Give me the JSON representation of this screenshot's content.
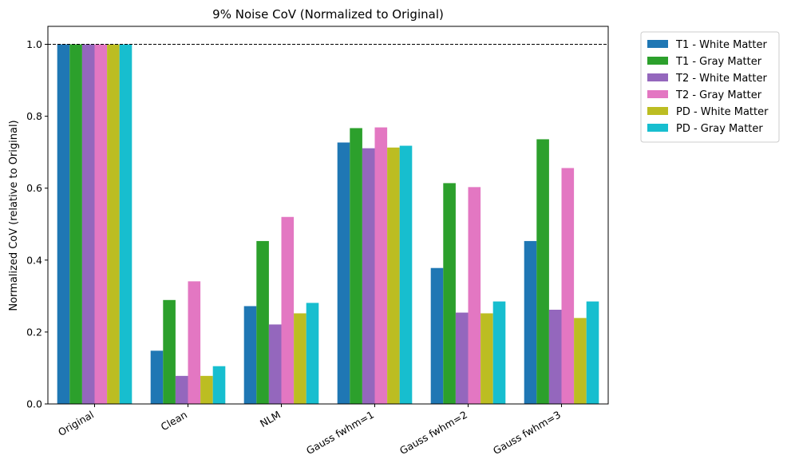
{
  "chart_data": {
    "type": "bar",
    "title": "9% Noise CoV (Normalized to Original)",
    "xlabel": "",
    "ylabel": "Normalized CoV (relative to Original)",
    "ylim": [
      0,
      1.05
    ],
    "yticks": [
      "0.0",
      "0.2",
      "0.4",
      "0.6",
      "0.8",
      "1.0"
    ],
    "categories": [
      "Original",
      "Clean",
      "NLM",
      "Gauss fwhm=1",
      "Gauss fwhm=2",
      "Gauss fwhm=3"
    ],
    "reference_line": {
      "y": 1.0,
      "style": "dashed",
      "color": "#000000"
    },
    "legend_position": "outside-top-right",
    "grid": false,
    "series": [
      {
        "name": "T1 - White Matter",
        "color": "#1f77b4",
        "values": [
          1.0,
          0.148,
          0.272,
          0.727,
          0.378,
          0.453
        ]
      },
      {
        "name": "T1 - Gray Matter",
        "color": "#2ca02c",
        "values": [
          1.0,
          0.289,
          0.453,
          0.767,
          0.614,
          0.736
        ]
      },
      {
        "name": "T2 - White Matter",
        "color": "#9467bd",
        "values": [
          1.0,
          0.078,
          0.221,
          0.711,
          0.254,
          0.262
        ]
      },
      {
        "name": "T2 - Gray Matter",
        "color": "#e377c2",
        "values": [
          1.0,
          0.341,
          0.52,
          0.769,
          0.603,
          0.656
        ]
      },
      {
        "name": "PD - White Matter",
        "color": "#bcbd22",
        "values": [
          1.0,
          0.078,
          0.252,
          0.713,
          0.252,
          0.239
        ]
      },
      {
        "name": "PD - Gray Matter",
        "color": "#17becf",
        "values": [
          1.0,
          0.105,
          0.281,
          0.718,
          0.285,
          0.285
        ]
      }
    ]
  }
}
